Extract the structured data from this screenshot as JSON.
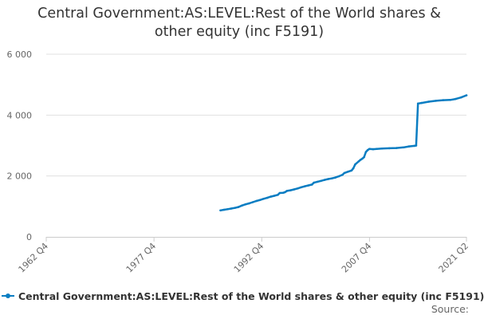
{
  "chart_data": {
    "type": "line",
    "title_lines": [
      "Central Government:AS:LEVEL:Rest of the World shares &",
      "other equity (inc F5191)"
    ],
    "x_tick_labels": [
      "1962 Q4",
      "1977 Q4",
      "1992 Q4",
      "2007 Q4",
      "2021 Q2"
    ],
    "y_tick_labels": [
      "0",
      "2 000",
      "4 000",
      "6 000"
    ],
    "y_ticks": [
      0,
      2000,
      4000,
      6000
    ],
    "ylim": [
      0,
      6000
    ],
    "xlim": [
      1962.75,
      2021.25
    ],
    "x_ticks": [
      1962.75,
      1977.75,
      1992.75,
      2007.75,
      2021.25
    ],
    "grid": true,
    "color": "#0a7dc2",
    "legend_position": "bottom",
    "series": [
      {
        "name": "Central Government:AS:LEVEL:Rest of the World shares & other equity (inc F5191)",
        "points": [
          [
            1987.0,
            870
          ],
          [
            1987.5,
            890
          ],
          [
            1988.0,
            910
          ],
          [
            1988.5,
            930
          ],
          [
            1989.0,
            950
          ],
          [
            1989.5,
            980
          ],
          [
            1990.0,
            1030
          ],
          [
            1990.5,
            1070
          ],
          [
            1991.0,
            1100
          ],
          [
            1991.5,
            1140
          ],
          [
            1992.0,
            1180
          ],
          [
            1992.5,
            1210
          ],
          [
            1993.0,
            1250
          ],
          [
            1993.5,
            1280
          ],
          [
            1994.0,
            1320
          ],
          [
            1994.5,
            1350
          ],
          [
            1995.0,
            1380
          ],
          [
            1995.25,
            1440
          ],
          [
            1995.75,
            1450
          ],
          [
            1996.0,
            1470
          ],
          [
            1996.25,
            1510
          ],
          [
            1996.75,
            1530
          ],
          [
            1997.25,
            1560
          ],
          [
            1997.75,
            1590
          ],
          [
            1998.25,
            1630
          ],
          [
            1998.75,
            1660
          ],
          [
            1999.25,
            1690
          ],
          [
            1999.75,
            1720
          ],
          [
            2000.0,
            1780
          ],
          [
            2000.5,
            1810
          ],
          [
            2001.0,
            1840
          ],
          [
            2001.5,
            1870
          ],
          [
            2002.0,
            1900
          ],
          [
            2002.5,
            1920
          ],
          [
            2003.0,
            1950
          ],
          [
            2003.5,
            1990
          ],
          [
            2004.0,
            2040
          ],
          [
            2004.25,
            2100
          ],
          [
            2004.75,
            2140
          ],
          [
            2005.25,
            2180
          ],
          [
            2005.5,
            2250
          ],
          [
            2005.75,
            2380
          ],
          [
            2006.25,
            2480
          ],
          [
            2006.5,
            2530
          ],
          [
            2006.75,
            2570
          ],
          [
            2007.0,
            2620
          ],
          [
            2007.25,
            2790
          ],
          [
            2007.5,
            2850
          ],
          [
            2007.75,
            2890
          ],
          [
            2008.25,
            2880
          ],
          [
            2008.75,
            2890
          ],
          [
            2009.5,
            2900
          ],
          [
            2010.5,
            2910
          ],
          [
            2011.5,
            2920
          ],
          [
            2012.5,
            2940
          ],
          [
            2013.25,
            2970
          ],
          [
            2014.0,
            2990
          ],
          [
            2014.25,
            3000
          ],
          [
            2014.5,
            4380
          ],
          [
            2015.0,
            4400
          ],
          [
            2016.0,
            4440
          ],
          [
            2017.0,
            4470
          ],
          [
            2018.0,
            4490
          ],
          [
            2019.0,
            4500
          ],
          [
            2019.75,
            4530
          ],
          [
            2020.5,
            4580
          ],
          [
            2021.25,
            4650
          ]
        ]
      }
    ]
  },
  "legend": {
    "label": "Central Government:AS:LEVEL:Rest of the World shares & other equity (inc F5191)"
  },
  "footer": {
    "source_label": "Source:"
  }
}
